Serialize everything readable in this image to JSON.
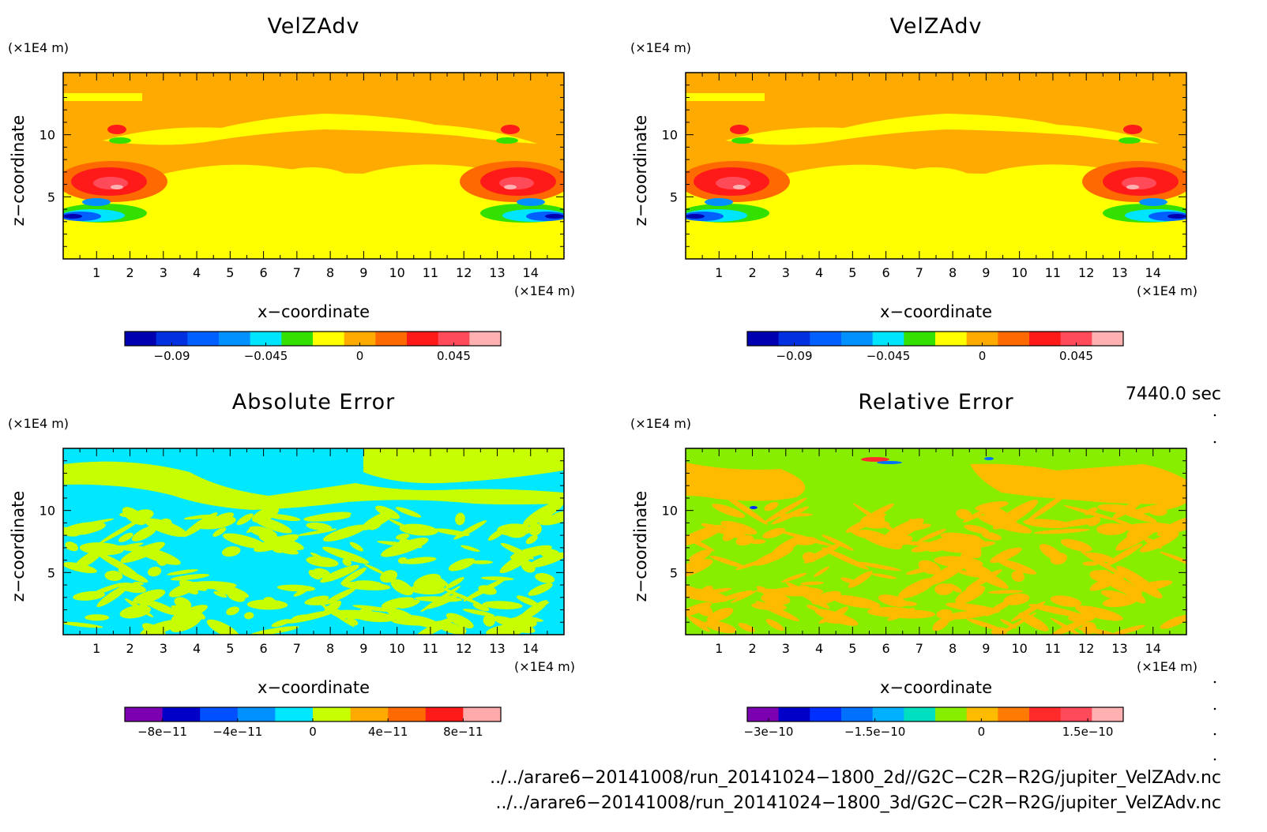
{
  "chart_data": [
    {
      "type": "heatmap",
      "title": "VelZAdv",
      "xlabel": "x−coordinate",
      "ylabel": "z−coordinate",
      "x_unit": "(×1E4 m)",
      "y_unit": "(×1E4 m)",
      "xlim": [
        0,
        15
      ],
      "ylim": [
        0,
        15
      ],
      "xticks": [
        "1",
        "2",
        "3",
        "4",
        "5",
        "6",
        "7",
        "8",
        "9",
        "10",
        "11",
        "12",
        "13",
        "14"
      ],
      "yticks": [
        "5",
        "10"
      ],
      "colorbar": {
        "colors": [
          "#0000b0",
          "#0030e0",
          "#0060ff",
          "#0090ff",
          "#00e5ff",
          "#33e000",
          "#ffff00",
          "#ffaa00",
          "#ff6a00",
          "#ff1a1a",
          "#ff4a5a",
          "#ffb0b0"
        ],
        "tick_labels": [
          "−0.09",
          "−0.045",
          "0",
          "0.045"
        ],
        "tick_values": [
          -0.09,
          -0.045,
          0,
          0.045
        ],
        "range": [
          -0.1125,
          0.0675
        ]
      }
    },
    {
      "type": "heatmap",
      "title": "VelZAdv",
      "xlabel": "x−coordinate",
      "ylabel": "z−coordinate",
      "x_unit": "(×1E4 m)",
      "y_unit": "(×1E4 m)",
      "xlim": [
        0,
        15
      ],
      "ylim": [
        0,
        15
      ],
      "xticks": [
        "1",
        "2",
        "3",
        "4",
        "5",
        "6",
        "7",
        "8",
        "9",
        "10",
        "11",
        "12",
        "13",
        "14"
      ],
      "yticks": [
        "5",
        "10"
      ],
      "colorbar": {
        "colors": [
          "#0000b0",
          "#0030e0",
          "#0060ff",
          "#0090ff",
          "#00e5ff",
          "#33e000",
          "#ffff00",
          "#ffaa00",
          "#ff6a00",
          "#ff1a1a",
          "#ff4a5a",
          "#ffb0b0"
        ],
        "tick_labels": [
          "−0.09",
          "−0.045",
          "0",
          "0.045"
        ],
        "tick_values": [
          -0.09,
          -0.045,
          0,
          0.045
        ],
        "range": [
          -0.1125,
          0.0675
        ]
      }
    },
    {
      "type": "heatmap",
      "title": "Absolute Error",
      "xlabel": "x−coordinate",
      "ylabel": "z−coordinate",
      "x_unit": "(×1E4 m)",
      "y_unit": "(×1E4 m)",
      "xlim": [
        0,
        15
      ],
      "ylim": [
        0,
        15
      ],
      "xticks": [
        "1",
        "2",
        "3",
        "4",
        "5",
        "6",
        "7",
        "8",
        "9",
        "10",
        "11",
        "12",
        "13",
        "14"
      ],
      "yticks": [
        "5",
        "10"
      ],
      "colorbar": {
        "colors": [
          "#7a00b0",
          "#0000c8",
          "#0050ff",
          "#0090ff",
          "#00e8ff",
          "#c8ff00",
          "#ffaa00",
          "#ff6a00",
          "#ff1a1a",
          "#ffaaaa"
        ],
        "tick_labels": [
          "−8e−11",
          "−4e−11",
          "0",
          "4e−11",
          "8e−11"
        ],
        "tick_values": [
          -8e-11,
          -4e-11,
          0,
          4e-11,
          8e-11
        ],
        "range": [
          -1e-10,
          1e-10
        ]
      }
    },
    {
      "type": "heatmap",
      "title": "Relative Error",
      "xlabel": "x−coordinate",
      "ylabel": "z−coordinate",
      "x_unit": "(×1E4 m)",
      "y_unit": "(×1E4 m)",
      "xlim": [
        0,
        15
      ],
      "ylim": [
        0,
        15
      ],
      "xticks": [
        "1",
        "2",
        "3",
        "4",
        "5",
        "6",
        "7",
        "8",
        "9",
        "10",
        "11",
        "12",
        "13",
        "14"
      ],
      "yticks": [
        "5",
        "10"
      ],
      "colorbar": {
        "colors": [
          "#7a00b0",
          "#0000c8",
          "#0030ff",
          "#0070ff",
          "#00b0ff",
          "#00e0c0",
          "#88ee00",
          "#ffbb00",
          "#ff7a00",
          "#ff2a2a",
          "#ff4a5a",
          "#ffb0b0"
        ],
        "tick_labels": [
          "−3e−10",
          "−1.5e−10",
          "0",
          "1.5e−10"
        ],
        "tick_values": [
          -3e-10,
          -1.5e-10,
          0,
          1.5e-10
        ],
        "range": [
          -3.3e-10,
          2e-10
        ]
      }
    }
  ],
  "time_label": "7440.0 sec",
  "files": [
    "../../arare6−20141008/run_20141024−1800_2d//G2C−C2R−R2G/jupiter_VelZAdv.nc",
    "../../arare6−20141008/run_20141024−1800_3d/G2C−C2R−R2G/jupiter_VelZAdv.nc"
  ]
}
